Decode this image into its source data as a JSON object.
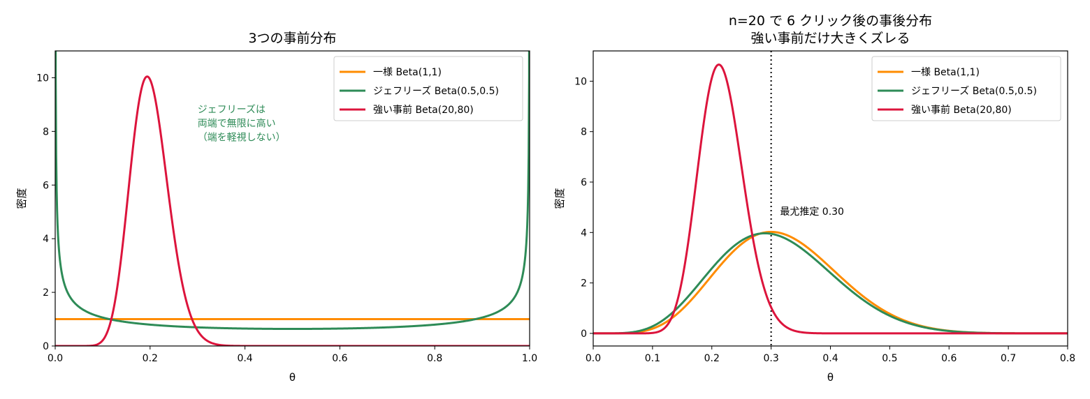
{
  "chart_data": [
    {
      "type": "line",
      "title": "3つの事前分布",
      "xlabel": "θ",
      "ylabel": "密度",
      "xlim": [
        0.0,
        1.0
      ],
      "ylim": [
        0,
        11
      ],
      "xticks": [
        "0.0",
        "0.2",
        "0.4",
        "0.6",
        "0.8",
        "1.0"
      ],
      "yticks": [
        "0",
        "2",
        "4",
        "6",
        "8",
        "10"
      ],
      "grid": false,
      "legend_position": "top-right",
      "series": [
        {
          "name": "一様 Beta(1,1)",
          "color": "#ff8c00",
          "dist": {
            "a": 1,
            "b": 1
          }
        },
        {
          "name": "ジェフリーズ Beta(0.5,0.5)",
          "color": "#2e8b57",
          "dist": {
            "a": 0.5,
            "b": 0.5
          }
        },
        {
          "name": "強い事前 Beta(20,80)",
          "color": "#dc143c",
          "dist": {
            "a": 20,
            "b": 80
          }
        }
      ],
      "annotations": [
        {
          "lines": [
            "ジェフリーズは",
            "両端で無限に高い",
            "（端を軽視しない）"
          ],
          "color": "#2e8b57",
          "x": 0.3,
          "y": 8.7
        }
      ]
    },
    {
      "type": "line",
      "title": "n=20 で 6 クリック後の事後分布",
      "subtitle": "強い事前だけ大きくズレる",
      "xlabel": "θ",
      "ylabel": "密度",
      "xlim": [
        0.0,
        0.8
      ],
      "ylim": [
        -0.5,
        11.2
      ],
      "xticks": [
        "0.0",
        "0.1",
        "0.2",
        "0.3",
        "0.4",
        "0.5",
        "0.6",
        "0.7",
        "0.8"
      ],
      "yticks": [
        "0",
        "2",
        "4",
        "6",
        "8",
        "10"
      ],
      "grid": false,
      "legend_position": "top-right",
      "series": [
        {
          "name": "一様 Beta(1,1)",
          "color": "#ff8c00",
          "dist": {
            "a": 7,
            "b": 15
          }
        },
        {
          "name": "ジェフリーズ Beta(0.5,0.5)",
          "color": "#2e8b57",
          "dist": {
            "a": 6.5,
            "b": 14.5
          }
        },
        {
          "name": "強い事前 Beta(20,80)",
          "color": "#dc143c",
          "dist": {
            "a": 26,
            "b": 94
          }
        }
      ],
      "reference_line": {
        "x": 0.3,
        "style": "dotted",
        "color": "#000000"
      },
      "annotations": [
        {
          "lines": [
            "最尤推定 0.30"
          ],
          "color": "#000000",
          "x": 0.315,
          "y": 4.7
        }
      ]
    }
  ]
}
